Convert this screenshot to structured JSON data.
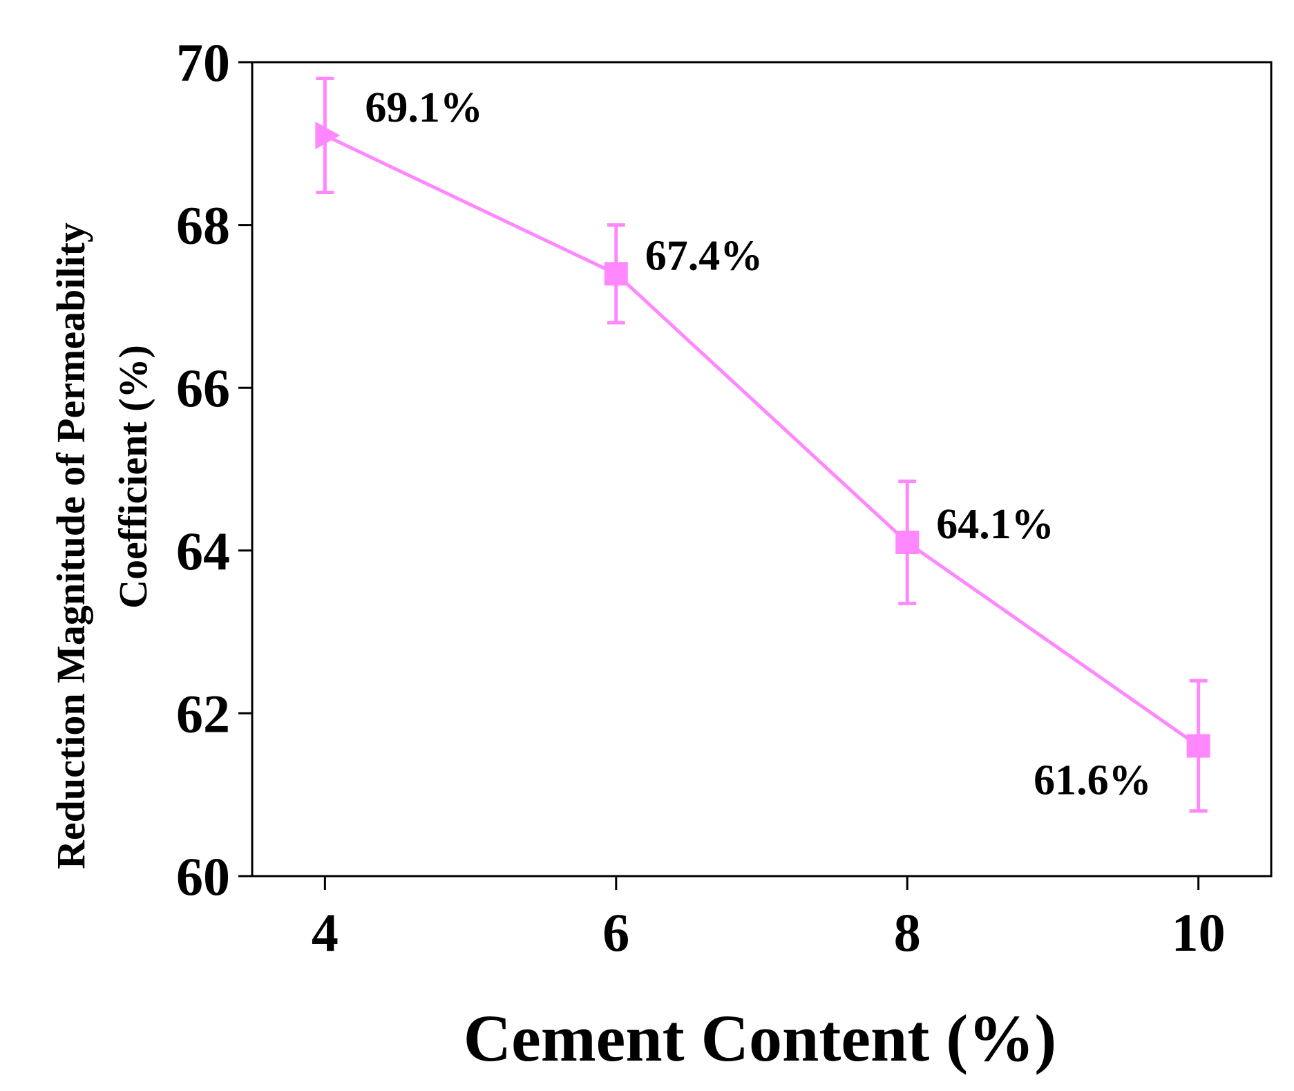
{
  "colors": {
    "series": "#ff88ff",
    "axis": "#000000",
    "background": "#ffffff"
  },
  "chart_data": {
    "type": "line",
    "title": "",
    "xlabel": "Cement Content (%)",
    "ylabel_line1": "Reduction Magnitude of Permeability",
    "ylabel_line2": "Coefficient (%)",
    "xlim": [
      3.5,
      10.5
    ],
    "ylim": [
      60,
      70
    ],
    "xticks": [
      4,
      6,
      8,
      10
    ],
    "yticks": [
      60,
      62,
      64,
      66,
      68,
      70
    ],
    "grid": false,
    "legend": "none",
    "series": [
      {
        "x": [
          4,
          6,
          8,
          10
        ],
        "y": [
          69.1,
          67.4,
          64.1,
          61.6
        ],
        "err": [
          0.7,
          0.6,
          0.75,
          0.8
        ],
        "markers": [
          "triangle-right",
          "square",
          "square",
          "square"
        ],
        "labels": [
          "69.1%",
          "67.4%",
          "64.1%",
          "61.6%"
        ],
        "label_positions": [
          "upper-right",
          "right",
          "right",
          "lower-left"
        ]
      }
    ]
  }
}
